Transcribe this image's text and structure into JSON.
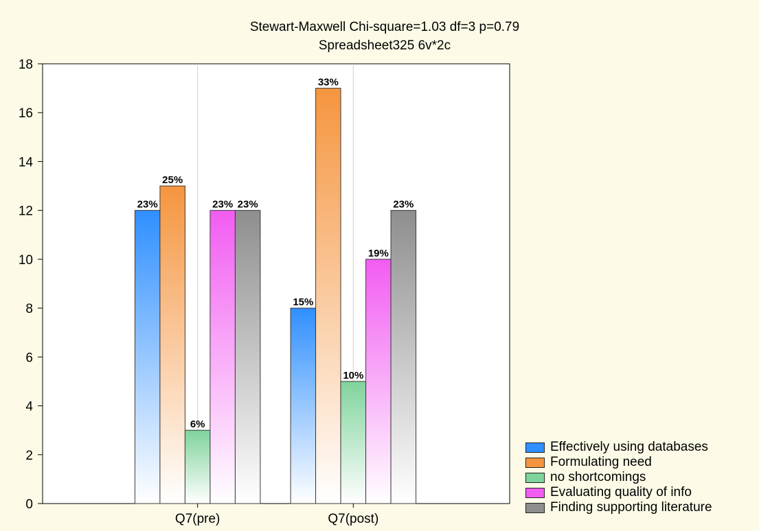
{
  "chart_data": {
    "type": "bar",
    "title": "Stewart-Maxwell Chi-square=1.03 df=3 p=0.79",
    "subtitle": "Spreadsheet325 6v*2c",
    "xlabel": "",
    "ylabel": "",
    "ylim": [
      0,
      18
    ],
    "yticks": [
      0,
      2,
      4,
      6,
      8,
      10,
      12,
      14,
      16,
      18
    ],
    "categories": [
      "Q7(pre)",
      "Q7(post)"
    ],
    "grid": true,
    "legend_position": "bottom-right",
    "series": [
      {
        "name": "Effectively using databases",
        "values": [
          12,
          8
        ],
        "labels": [
          "23%",
          "15%"
        ],
        "color": "#2f8fff"
      },
      {
        "name": "Formulating need",
        "values": [
          13,
          17
        ],
        "labels": [
          "25%",
          "33%"
        ],
        "color": "#f5953f"
      },
      {
        "name": "no shortcomings",
        "values": [
          3,
          5
        ],
        "labels": [
          "6%",
          "10%"
        ],
        "color": "#7fd39c"
      },
      {
        "name": "Evaluating quality of info",
        "values": [
          12,
          10
        ],
        "labels": [
          "23%",
          "19%"
        ],
        "color": "#f25cf2"
      },
      {
        "name": "Finding supporting literature",
        "values": [
          12,
          12
        ],
        "labels": [
          "23%",
          "23%"
        ],
        "color": "#8e8e8e"
      }
    ]
  }
}
